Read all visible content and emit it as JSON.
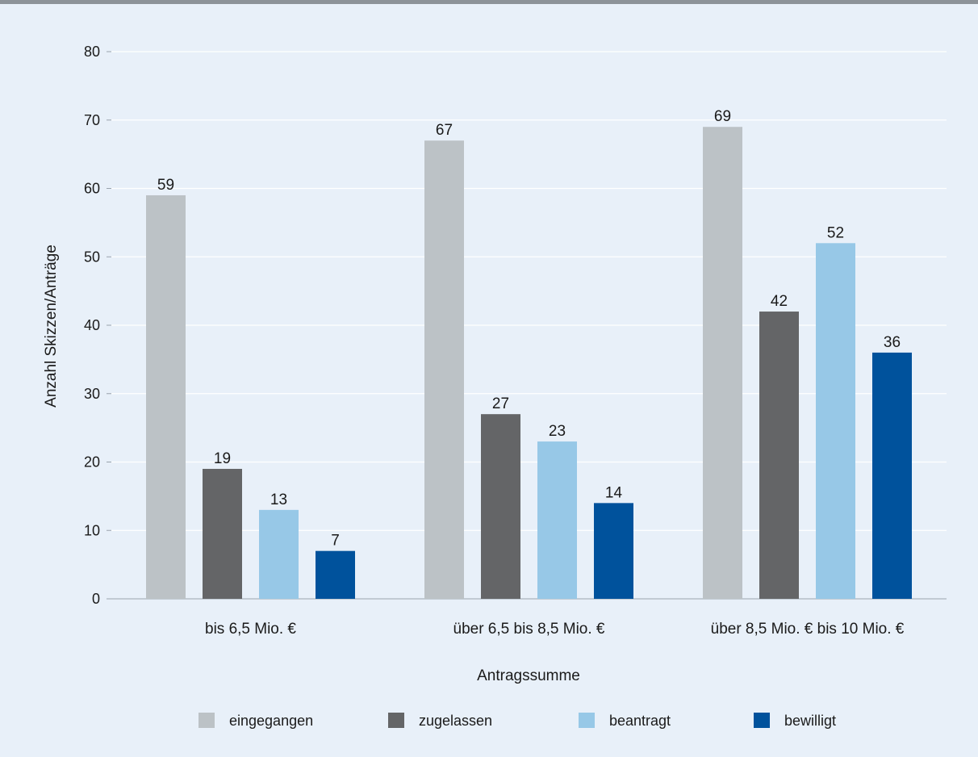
{
  "chart_data": {
    "type": "bar",
    "categories": [
      "bis 6,5 Mio. €",
      "über 6,5 bis 8,5 Mio. €",
      "über 8,5 Mio. € bis 10 Mio. €"
    ],
    "series": [
      {
        "name": "eingegangen",
        "color": "#bcc2c6",
        "values": [
          59,
          67,
          69
        ]
      },
      {
        "name": "zugelassen",
        "color": "#646567",
        "values": [
          19,
          27,
          42
        ]
      },
      {
        "name": "beantragt",
        "color": "#97c8e7",
        "values": [
          13,
          23,
          52
        ]
      },
      {
        "name": "bewilligt",
        "color": "#00529c",
        "values": [
          7,
          14,
          36
        ]
      }
    ],
    "xlabel": "Antragssumme",
    "ylabel": "Anzahl Skizzen/Anträge",
    "ylim": [
      0,
      80
    ],
    "yticks": [
      0,
      10,
      20,
      30,
      40,
      50,
      60,
      70,
      80
    ],
    "grid": true,
    "legend": "bottom",
    "background_color": "#e8f0f9"
  }
}
